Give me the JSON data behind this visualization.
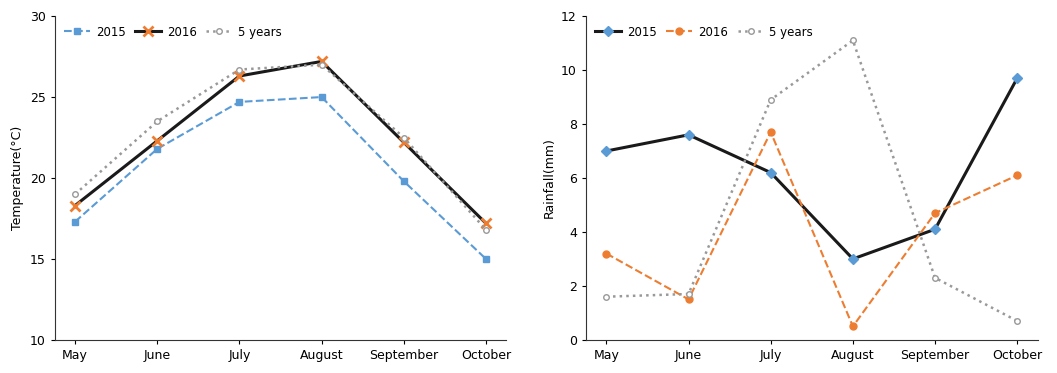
{
  "months": [
    "May",
    "June",
    "July",
    "August",
    "September",
    "October"
  ],
  "temp_2015": [
    17.3,
    21.8,
    24.7,
    25.0,
    19.8,
    15.0
  ],
  "temp_2016": [
    18.3,
    22.3,
    26.3,
    27.2,
    22.2,
    17.2
  ],
  "temp_5years": [
    19.0,
    23.5,
    26.7,
    27.0,
    22.5,
    16.8
  ],
  "rain_2015": [
    7.0,
    7.6,
    6.2,
    3.0,
    4.1,
    9.7
  ],
  "rain_2016": [
    3.2,
    1.5,
    7.7,
    0.5,
    4.7,
    6.1
  ],
  "rain_5years": [
    1.6,
    1.7,
    8.9,
    11.1,
    2.3,
    0.7
  ],
  "temp_ylabel": "Temperature(°C)",
  "rain_ylabel": "Rainfall(mm)",
  "temp_ylim": [
    10,
    30
  ],
  "rain_ylim": [
    0,
    12
  ],
  "temp_yticks": [
    10,
    15,
    20,
    25,
    30
  ],
  "rain_yticks": [
    0,
    2,
    4,
    6,
    8,
    10,
    12
  ],
  "color_2015_temp": "#5b9bd5",
  "color_2016": "#ed7d31",
  "color_5years": "#999999",
  "color_black": "#1a1a1a",
  "figsize": [
    10.57,
    3.73
  ],
  "dpi": 100
}
